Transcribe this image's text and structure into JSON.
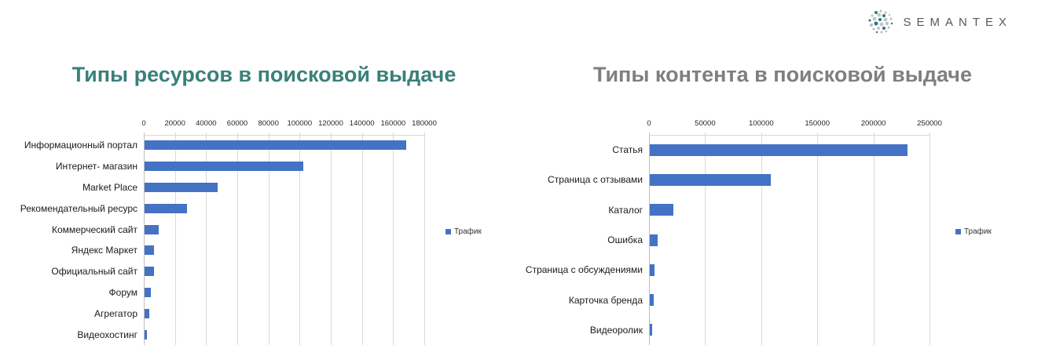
{
  "logo": {
    "text": "SEMANTEX"
  },
  "chart_data": [
    {
      "type": "bar",
      "orientation": "horizontal",
      "title": "Типы ресурсов в поисковой выдаче",
      "title_color": "#3a807a",
      "bar_color": "#4472C4",
      "legend": "Трафик",
      "legend_position": "right",
      "grid": true,
      "xlim": [
        0,
        180000
      ],
      "x_tick_step": 20000,
      "x_tick_labels": [
        "0",
        "20000",
        "40000",
        "60000",
        "80000",
        "100000",
        "120000",
        "140000",
        "160000",
        "180000"
      ],
      "categories": [
        "Информационный портал",
        "Интернет- магазин",
        "Market Place",
        "Рекомендательный ресурс",
        "Коммерческий сайт",
        "Яндекс Маркет",
        "Официальный сайт",
        "Форум",
        "Агрегатор",
        "Видеохостинг"
      ],
      "values": [
        168000,
        102000,
        47000,
        27000,
        9000,
        6000,
        6000,
        4000,
        3000,
        1700
      ]
    },
    {
      "type": "bar",
      "orientation": "horizontal",
      "title": "Типы контента в поисковой выдаче",
      "title_color": "#7f7f7f",
      "bar_color": "#4472C4",
      "legend": "Трафик",
      "legend_position": "right",
      "grid": true,
      "xlim": [
        0,
        250000
      ],
      "x_tick_step": 50000,
      "x_tick_labels": [
        "0",
        "50000",
        "100000",
        "150000",
        "200000",
        "250000"
      ],
      "categories": [
        "Статья",
        "Страница с отзывами",
        "Каталог",
        "Ошибка",
        "Страница с обсуждениями",
        "Карточка бренда",
        "Видеоролик"
      ],
      "values": [
        230000,
        108000,
        21000,
        7000,
        4500,
        3500,
        2000
      ]
    }
  ],
  "colors": {
    "bar": "#4472C4",
    "gridline": "#d9d9d9",
    "axis_line": "#bfbfbf",
    "left_title": "#3a807a",
    "right_title": "#7f7f7f",
    "logo_gray": "#b8bcc0",
    "logo_teal": "#2b7683"
  }
}
